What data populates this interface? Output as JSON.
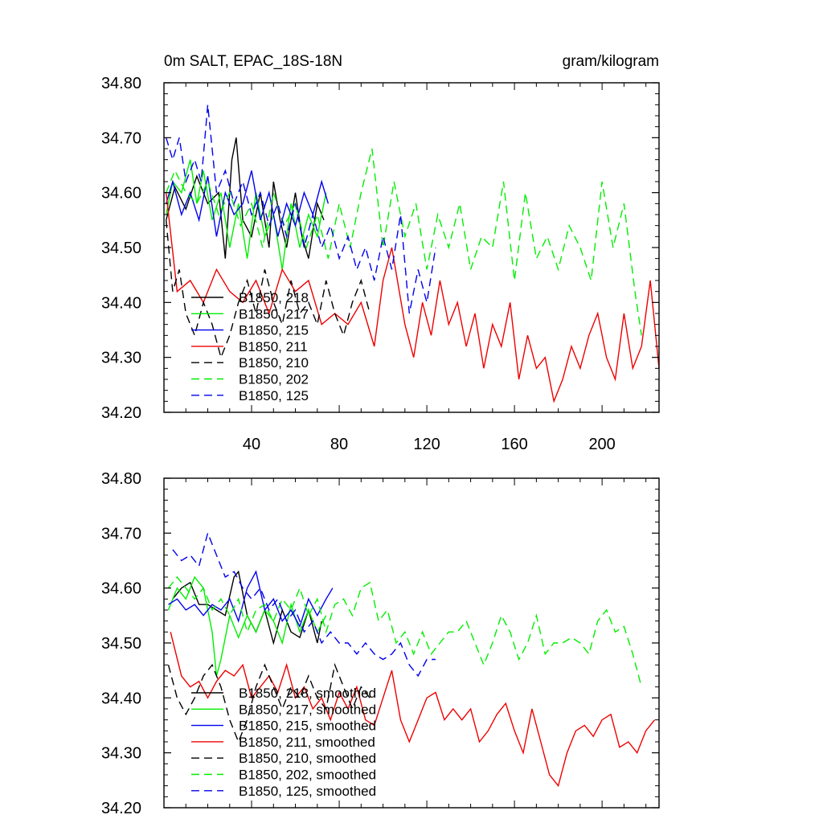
{
  "colors": {
    "c218": "#000000",
    "c217": "#00ee00",
    "c215": "#0000ee",
    "c211": "#ee0000",
    "c210": "#000000",
    "c202": "#00ee00",
    "c125": "#0000ee"
  },
  "chart_data": [
    {
      "type": "line",
      "title": "0m SALT, EPAC_18S-18N",
      "units": "gram/kilogram",
      "xlim": [
        0,
        226
      ],
      "ylim": [
        34.2,
        34.8
      ],
      "xticks": [
        40,
        80,
        120,
        160,
        200
      ],
      "yticks": [
        34.2,
        34.3,
        34.4,
        34.5,
        34.6,
        34.7,
        34.8
      ],
      "ytick_labels": [
        "34.20",
        "34.30",
        "34.40",
        "34.50",
        "34.60",
        "34.70",
        "34.80"
      ],
      "xtick_labels": [
        "40",
        "80",
        "120",
        "160",
        "200"
      ],
      "legend": [
        "B1850, 218",
        "B1850, 217",
        "B1850, 215",
        "B1850, 211",
        "B1850, 210",
        "B1850, 202",
        "B1850, 125"
      ],
      "series": [
        {
          "name": "B1850, 218",
          "color_key": "c218",
          "dash": "",
          "x": [
            1,
            5,
            10,
            15,
            20,
            25,
            28,
            31,
            33,
            36,
            40,
            44,
            48,
            50,
            53,
            56,
            60,
            63,
            66,
            70,
            73
          ],
          "y": [
            34.55,
            34.61,
            34.57,
            34.63,
            34.58,
            34.6,
            34.48,
            34.66,
            34.7,
            34.55,
            34.52,
            34.6,
            34.5,
            34.62,
            34.55,
            34.5,
            34.6,
            34.52,
            34.48,
            34.58,
            34.55
          ]
        },
        {
          "name": "B1850, 217",
          "color_key": "c217",
          "dash": "",
          "x": [
            1,
            4,
            8,
            12,
            15,
            18,
            22,
            26,
            30,
            34,
            38,
            42,
            46,
            50,
            54,
            58,
            62,
            66,
            70,
            74
          ],
          "y": [
            34.56,
            34.62,
            34.6,
            34.66,
            34.58,
            34.64,
            34.55,
            34.6,
            34.5,
            34.58,
            34.48,
            34.6,
            34.52,
            34.56,
            34.46,
            34.58,
            34.5,
            34.56,
            34.52,
            34.6
          ]
        },
        {
          "name": "B1850, 215",
          "color_key": "c215",
          "dash": "",
          "x": [
            1,
            4,
            8,
            12,
            16,
            20,
            24,
            28,
            32,
            36,
            40,
            44,
            48,
            52,
            56,
            60,
            64,
            68,
            72,
            75
          ],
          "y": [
            34.58,
            34.62,
            34.56,
            34.6,
            34.55,
            34.63,
            34.52,
            34.6,
            34.56,
            34.58,
            34.64,
            34.55,
            34.6,
            34.52,
            34.58,
            34.54,
            34.6,
            34.56,
            34.62,
            34.58
          ]
        },
        {
          "name": "B1850, 211",
          "color_key": "c211",
          "dash": "",
          "x": [
            1,
            6,
            12,
            18,
            24,
            30,
            36,
            42,
            48,
            54,
            60,
            66,
            72,
            78,
            84,
            90,
            96,
            100,
            104,
            110,
            114,
            118,
            122,
            126,
            130,
            134,
            138,
            142,
            146,
            150,
            154,
            158,
            162,
            166,
            170,
            174,
            178,
            182,
            186,
            190,
            194,
            198,
            202,
            206,
            210,
            214,
            218,
            222,
            226
          ],
          "y": [
            34.6,
            34.42,
            34.44,
            34.4,
            34.46,
            34.42,
            34.4,
            34.44,
            34.38,
            34.46,
            34.42,
            34.44,
            34.36,
            34.38,
            34.36,
            34.4,
            34.32,
            34.44,
            34.5,
            34.36,
            34.3,
            34.4,
            34.34,
            34.44,
            34.36,
            34.4,
            34.32,
            34.38,
            34.28,
            34.36,
            34.32,
            34.4,
            34.26,
            34.34,
            34.28,
            34.3,
            34.22,
            34.26,
            34.32,
            34.28,
            34.34,
            34.38,
            34.3,
            34.26,
            34.38,
            34.28,
            34.32,
            34.44,
            34.28
          ]
        },
        {
          "name": "B1850, 210",
          "color_key": "c210",
          "dash": "10,6",
          "x": [
            1,
            4,
            7,
            10,
            14,
            18,
            22,
            26,
            30,
            34,
            38,
            42,
            46,
            50,
            54,
            58,
            62,
            66,
            70,
            74,
            78,
            82,
            86,
            90,
            94
          ],
          "y": [
            34.55,
            34.42,
            34.46,
            34.38,
            34.34,
            34.4,
            34.36,
            34.3,
            34.34,
            34.4,
            34.44,
            34.38,
            34.46,
            34.4,
            34.36,
            34.44,
            34.38,
            34.4,
            34.36,
            34.44,
            34.38,
            34.34,
            34.4,
            34.44,
            34.38
          ]
        },
        {
          "name": "B1850, 202",
          "color_key": "c202",
          "dash": "10,6",
          "x": [
            1,
            5,
            10,
            15,
            20,
            25,
            30,
            35,
            40,
            45,
            50,
            55,
            60,
            65,
            70,
            75,
            80,
            85,
            90,
            95,
            100,
            105,
            110,
            115,
            120,
            125,
            130,
            135,
            140,
            145,
            150,
            155,
            160,
            165,
            170,
            175,
            180,
            185,
            190,
            195,
            200,
            205,
            210,
            215,
            218
          ],
          "y": [
            34.6,
            34.64,
            34.6,
            34.58,
            34.62,
            34.56,
            34.6,
            34.54,
            34.58,
            34.5,
            34.6,
            34.54,
            34.58,
            34.5,
            34.56,
            34.48,
            34.58,
            34.5,
            34.6,
            34.68,
            34.5,
            34.62,
            34.52,
            34.58,
            34.46,
            34.56,
            34.5,
            34.58,
            34.46,
            34.52,
            34.5,
            34.62,
            34.44,
            34.6,
            34.48,
            34.52,
            34.46,
            34.54,
            34.5,
            34.44,
            34.62,
            34.5,
            34.58,
            34.42,
            34.34
          ]
        },
        {
          "name": "B1850, 125",
          "color_key": "c125",
          "dash": "10,6",
          "x": [
            1,
            4,
            7,
            10,
            14,
            17,
            20,
            24,
            28,
            32,
            36,
            40,
            44,
            48,
            52,
            56,
            60,
            64,
            68,
            72,
            76,
            80,
            84,
            88,
            92,
            96,
            100,
            104,
            108,
            112,
            116,
            120,
            124
          ],
          "y": [
            34.7,
            34.66,
            34.7,
            34.62,
            34.66,
            34.62,
            34.76,
            34.6,
            34.64,
            34.58,
            34.62,
            34.56,
            34.6,
            34.54,
            34.58,
            34.52,
            34.58,
            34.5,
            34.56,
            34.5,
            34.54,
            34.48,
            34.52,
            34.46,
            34.5,
            34.44,
            34.52,
            34.46,
            34.56,
            34.38,
            34.46,
            34.4,
            34.5
          ]
        }
      ]
    },
    {
      "type": "line",
      "title": "",
      "xlim": [
        0,
        226
      ],
      "ylim": [
        34.2,
        34.8
      ],
      "yticks": [
        34.2,
        34.3,
        34.4,
        34.5,
        34.6,
        34.7,
        34.8
      ],
      "ytick_labels": [
        "34.20",
        "34.30",
        "34.40",
        "34.50",
        "34.60",
        "34.70",
        "34.80"
      ],
      "legend": [
        "B1850, 218, smoothed",
        "B1850, 217, smoothed",
        "B1850, 215, smoothed",
        "B1850, 211, smoothed",
        "B1850, 210, smoothed",
        "B1850, 202, smoothed",
        "B1850, 125, smoothed"
      ],
      "series": [
        {
          "name": "B1850, 218, smoothed",
          "color_key": "c218",
          "dash": "",
          "x": [
            4,
            8,
            12,
            16,
            20,
            24,
            28,
            32,
            34,
            38,
            42,
            46,
            50,
            54,
            58,
            62,
            66,
            70,
            72
          ],
          "y": [
            34.58,
            34.6,
            34.61,
            34.57,
            34.57,
            34.56,
            34.55,
            34.62,
            34.63,
            34.55,
            34.52,
            34.56,
            34.5,
            34.56,
            34.52,
            34.51,
            34.56,
            34.5,
            34.54
          ]
        },
        {
          "name": "B1850, 217, smoothed",
          "color_key": "c217",
          "dash": "",
          "x": [
            2,
            6,
            10,
            14,
            18,
            20,
            22,
            24,
            26,
            30,
            34,
            38,
            42,
            46,
            50,
            54,
            58,
            62,
            66,
            70,
            74
          ],
          "y": [
            34.56,
            34.6,
            34.58,
            34.62,
            34.6,
            34.56,
            34.52,
            34.44,
            34.47,
            34.55,
            34.51,
            34.55,
            34.52,
            34.56,
            34.54,
            34.5,
            34.57,
            34.52,
            34.56,
            34.52,
            34.55
          ]
        },
        {
          "name": "B1850, 215, smoothed",
          "color_key": "c215",
          "dash": "",
          "x": [
            2,
            6,
            10,
            14,
            18,
            22,
            26,
            30,
            34,
            38,
            42,
            46,
            50,
            54,
            58,
            62,
            66,
            70,
            74,
            77
          ],
          "y": [
            34.57,
            34.58,
            34.56,
            34.57,
            34.55,
            34.57,
            34.56,
            34.58,
            34.54,
            34.6,
            34.63,
            34.56,
            34.58,
            34.54,
            34.56,
            34.53,
            34.58,
            34.55,
            34.58,
            34.6
          ]
        },
        {
          "name": "B1850, 211, smoothed",
          "color_key": "c211",
          "dash": "",
          "x": [
            3,
            8,
            12,
            16,
            20,
            24,
            28,
            32,
            36,
            40,
            44,
            48,
            52,
            56,
            60,
            64,
            68,
            72,
            76,
            80,
            84,
            88,
            92,
            96,
            100,
            104,
            108,
            112,
            116,
            120,
            124,
            128,
            132,
            136,
            140,
            144,
            148,
            152,
            156,
            160,
            164,
            168,
            172,
            176,
            180,
            184,
            188,
            192,
            196,
            200,
            204,
            208,
            212,
            216,
            220,
            224
          ],
          "y": [
            34.52,
            34.44,
            34.42,
            34.43,
            34.4,
            34.43,
            34.45,
            34.44,
            34.46,
            34.4,
            34.42,
            34.44,
            34.41,
            34.46,
            34.4,
            34.42,
            34.38,
            34.4,
            34.36,
            34.41,
            34.38,
            34.42,
            34.36,
            34.35,
            34.4,
            34.45,
            34.36,
            34.32,
            34.36,
            34.4,
            34.41,
            34.36,
            34.38,
            34.36,
            34.38,
            34.32,
            34.34,
            34.37,
            34.39,
            34.34,
            34.3,
            34.38,
            34.32,
            34.26,
            34.24,
            34.3,
            34.34,
            34.35,
            34.33,
            34.36,
            34.37,
            34.31,
            34.32,
            34.3,
            34.34,
            34.36
          ]
        },
        {
          "name": "B1850, 210, smoothed",
          "color_key": "c210",
          "dash": "10,6",
          "x": [
            2,
            6,
            10,
            14,
            18,
            22,
            26,
            30,
            34,
            38,
            42,
            46,
            50,
            54,
            58,
            62,
            66,
            70,
            74,
            78,
            82,
            86,
            90,
            94
          ],
          "y": [
            34.46,
            34.4,
            34.37,
            34.4,
            34.44,
            34.46,
            34.42,
            34.36,
            34.32,
            34.36,
            34.42,
            34.46,
            34.42,
            34.38,
            34.42,
            34.4,
            34.44,
            34.4,
            34.38,
            34.46,
            34.42,
            34.38,
            34.42,
            34.4
          ]
        },
        {
          "name": "B1850, 202, smoothed",
          "color_key": "c202",
          "dash": "10,6",
          "x": [
            2,
            6,
            10,
            14,
            18,
            22,
            26,
            30,
            34,
            38,
            42,
            46,
            50,
            54,
            58,
            62,
            66,
            70,
            74,
            78,
            82,
            86,
            90,
            94,
            98,
            102,
            106,
            110,
            114,
            118,
            122,
            126,
            130,
            134,
            138,
            142,
            146,
            150,
            154,
            158,
            162,
            166,
            170,
            174,
            178,
            182,
            186,
            190,
            194,
            198,
            202,
            206,
            210,
            214,
            218
          ],
          "y": [
            34.6,
            34.62,
            34.6,
            34.58,
            34.6,
            34.56,
            34.58,
            34.55,
            34.58,
            34.52,
            34.56,
            34.57,
            34.54,
            34.58,
            34.56,
            34.6,
            34.55,
            34.58,
            34.52,
            34.57,
            34.58,
            34.55,
            34.6,
            34.61,
            34.54,
            34.56,
            34.5,
            34.52,
            34.48,
            34.52,
            34.48,
            34.5,
            34.52,
            34.52,
            34.54,
            34.5,
            34.46,
            34.5,
            34.55,
            34.52,
            34.47,
            34.5,
            34.55,
            34.48,
            34.5,
            34.5,
            34.51,
            34.5,
            34.48,
            34.54,
            34.56,
            34.52,
            34.53,
            34.48,
            34.42
          ]
        },
        {
          "name": "B1850, 125, smoothed",
          "color_key": "c125",
          "dash": "10,6",
          "x": [
            4,
            8,
            12,
            16,
            20,
            24,
            28,
            32,
            36,
            40,
            44,
            48,
            52,
            56,
            60,
            64,
            68,
            72,
            76,
            80,
            84,
            88,
            92,
            96,
            100,
            104,
            108,
            112,
            116,
            120,
            124
          ],
          "y": [
            34.67,
            34.65,
            34.66,
            34.64,
            34.7,
            34.66,
            34.62,
            34.63,
            34.6,
            34.58,
            34.6,
            34.56,
            34.58,
            34.54,
            34.56,
            34.52,
            34.54,
            34.5,
            34.52,
            34.5,
            34.5,
            34.48,
            34.5,
            34.48,
            34.47,
            34.48,
            34.5,
            34.46,
            34.44,
            34.47,
            34.47
          ]
        }
      ]
    }
  ]
}
